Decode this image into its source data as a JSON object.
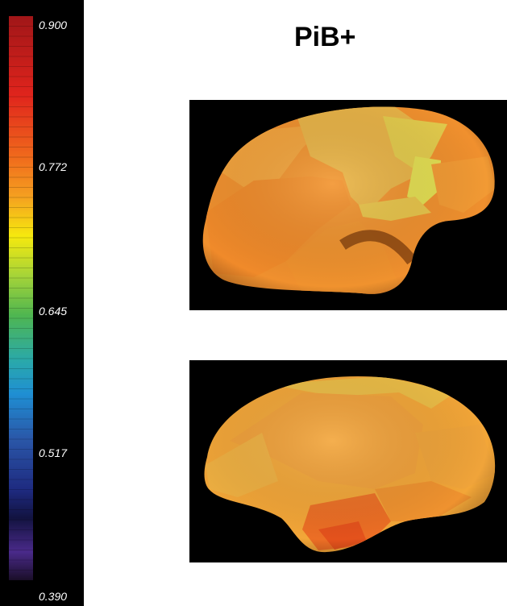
{
  "title": "PiB+",
  "colorbar": {
    "ticks": [
      "0.900",
      "0.772",
      "0.645",
      "0.517",
      "0.390"
    ],
    "range": [
      0.39,
      0.9
    ],
    "colors": [
      "#b0161a",
      "#e52a1e",
      "#f06e1a",
      "#f5a623",
      "#f4e00e",
      "#9cd23a",
      "#4fb450",
      "#2fa8a8",
      "#2196d3",
      "#2c5cab",
      "#222e8a",
      "#16144a",
      "#4a2a8c",
      "#20102e"
    ]
  },
  "surfaces": [
    {
      "view": "lateral",
      "colors": [
        "#f0a33a",
        "#ebb53f",
        "#e2d450",
        "#f0902e"
      ]
    },
    {
      "view": "medial",
      "colors": [
        "#f3a638",
        "#edb641",
        "#ef7a27",
        "#e85a1e"
      ]
    }
  ]
}
